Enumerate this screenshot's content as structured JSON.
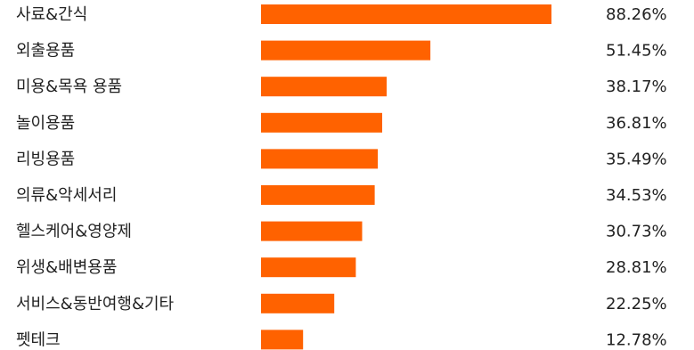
{
  "chart_data": {
    "type": "bar",
    "orientation": "horizontal",
    "title": "",
    "xlabel": "",
    "ylabel": "",
    "xlim": [
      0,
      100
    ],
    "grid": false,
    "legend": "none",
    "bar_color": "#FF6200",
    "label_color": "#222222",
    "categories": [
      "사료&간식",
      "외출용품",
      "미용&목욕 용품",
      "놀이용품",
      "리빙용품",
      "의류&악세서리",
      "헬스케어&영양제",
      "위생&배변용품",
      "서비스&동반여행&기타",
      "펫테크"
    ],
    "values": [
      88.26,
      51.45,
      38.17,
      36.81,
      35.49,
      34.53,
      30.73,
      28.81,
      22.25,
      12.78
    ],
    "value_labels": [
      "88.26%",
      "51.45%",
      "38.17%",
      "36.81%",
      "35.49%",
      "34.53%",
      "30.73%",
      "28.81%",
      "22.25%",
      "12.78%"
    ]
  }
}
